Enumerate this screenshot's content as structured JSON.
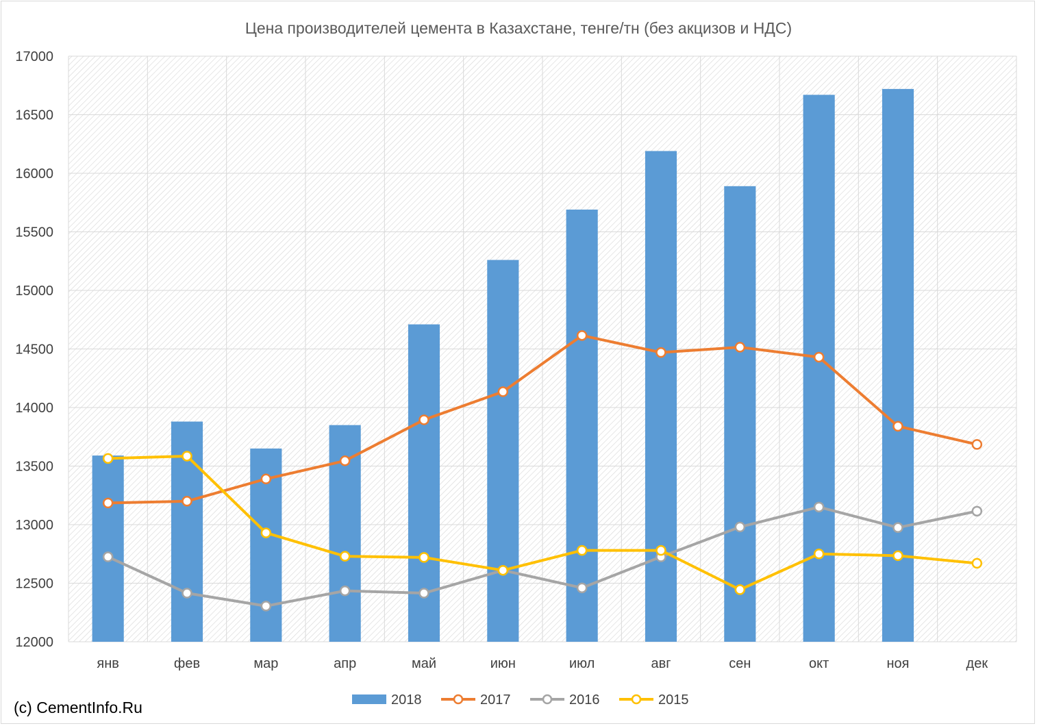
{
  "chart_data": {
    "type": "bar+line",
    "title": "Цена производителей цемента в Казахстане, тенге/тн (без акцизов и НДС)",
    "categories": [
      "янв",
      "фев",
      "мар",
      "апр",
      "май",
      "июн",
      "июл",
      "авг",
      "сен",
      "окт",
      "ноя",
      "дек"
    ],
    "ylim": [
      12000,
      17000
    ],
    "yticks": [
      12000,
      12500,
      13000,
      13500,
      14000,
      14500,
      15000,
      15500,
      16000,
      16500,
      17000
    ],
    "grid": true,
    "legend_position": "bottom",
    "series": [
      {
        "name": "2018",
        "type": "bar",
        "color": "#5b9bd5",
        "values": [
          13590,
          13880,
          13650,
          13850,
          14710,
          15260,
          15690,
          16190,
          15890,
          16670,
          16720,
          null
        ]
      },
      {
        "name": "2017",
        "type": "line",
        "color": "#ed7d31",
        "values": [
          13185,
          13200,
          13390,
          13545,
          13895,
          14135,
          14615,
          14470,
          14515,
          14430,
          13840,
          13685
        ]
      },
      {
        "name": "2016",
        "type": "line",
        "color": "#a5a5a5",
        "values": [
          12725,
          12415,
          12305,
          12435,
          12415,
          12610,
          12460,
          12725,
          12980,
          13150,
          12975,
          13115
        ]
      },
      {
        "name": "2015",
        "type": "line",
        "color": "#ffc000",
        "values": [
          13565,
          13585,
          12930,
          12730,
          12720,
          12610,
          12780,
          12780,
          12445,
          12750,
          12735,
          12670
        ]
      }
    ]
  },
  "footer": {
    "credit": "(c) CementInfo.Ru"
  }
}
